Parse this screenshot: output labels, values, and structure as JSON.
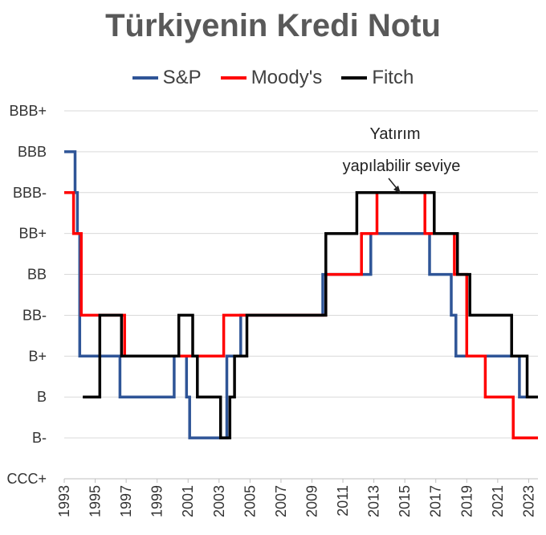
{
  "chart_data": {
    "type": "line",
    "title": "Türkiyenin Kredi Notu",
    "xlabel": "",
    "ylabel": "",
    "xlim": [
      1993,
      2023.6
    ],
    "x_ticks": [
      "1993",
      "1995",
      "1997",
      "1999",
      "2001",
      "2003",
      "2005",
      "2007",
      "2009",
      "2011",
      "2013",
      "2015",
      "2017",
      "2019",
      "2021",
      "2023"
    ],
    "y_categories": [
      "B-",
      "B",
      "B+",
      "BB-",
      "BB",
      "BB+",
      "BBB-",
      "BBB",
      "BBB+"
    ],
    "y_axis_labels": [
      "CCC+",
      "B-",
      "B",
      "B+",
      "BB-",
      "BB",
      "BB+",
      "BBB-",
      "BBB",
      "BBB+"
    ],
    "y_levels_note": "CCC+=0, B-=1, B=2, B+=3, BB-=4, BB=5, BB+=6, BBB-=7, BBB=8, BBB+=9",
    "grid": true,
    "legend_position": "top",
    "annotation": [
      "Yatırım",
      "yapılabilir seviye"
    ],
    "series": [
      {
        "name": "S&P",
        "color": "#2F5597",
        "points": [
          [
            1993,
            8
          ],
          [
            1993.7,
            8
          ],
          [
            1993.7,
            7
          ],
          [
            1993.85,
            7
          ],
          [
            1993.85,
            6
          ],
          [
            1994.0,
            6
          ],
          [
            1994.0,
            3
          ],
          [
            1996.6,
            3
          ],
          [
            1996.6,
            2
          ],
          [
            2000.1,
            2
          ],
          [
            2000.1,
            3
          ],
          [
            2000.9,
            3
          ],
          [
            2000.9,
            2
          ],
          [
            2001.1,
            2
          ],
          [
            2001.1,
            1
          ],
          [
            2003.5,
            1
          ],
          [
            2003.5,
            3
          ],
          [
            2004.4,
            3
          ],
          [
            2004.4,
            4
          ],
          [
            2009.7,
            4
          ],
          [
            2009.7,
            5
          ],
          [
            2012.8,
            5
          ],
          [
            2012.8,
            6
          ],
          [
            2016.6,
            6
          ],
          [
            2016.6,
            5
          ],
          [
            2018.0,
            5
          ],
          [
            2018.0,
            4
          ],
          [
            2018.3,
            4
          ],
          [
            2018.3,
            3
          ],
          [
            2022.4,
            3
          ],
          [
            2022.4,
            2
          ],
          [
            2023.6,
            2
          ]
        ]
      },
      {
        "name": "Moody's",
        "color": "#FF0000",
        "points": [
          [
            1993,
            7
          ],
          [
            1993.6,
            7
          ],
          [
            1993.6,
            6
          ],
          [
            1994.1,
            6
          ],
          [
            1994.1,
            4
          ],
          [
            1996.9,
            4
          ],
          [
            1996.9,
            3
          ],
          [
            2003.3,
            3
          ],
          [
            2003.3,
            4
          ],
          [
            2006.0,
            4
          ],
          [
            2006.0,
            4
          ],
          [
            2009.9,
            4
          ],
          [
            2009.9,
            5
          ],
          [
            2012.2,
            5
          ],
          [
            2012.2,
            6
          ],
          [
            2013.2,
            6
          ],
          [
            2013.2,
            7
          ],
          [
            2016.3,
            7
          ],
          [
            2016.3,
            6
          ],
          [
            2018.2,
            6
          ],
          [
            2018.2,
            5
          ],
          [
            2019.0,
            5
          ],
          [
            2019.0,
            3
          ],
          [
            2020.2,
            3
          ],
          [
            2020.2,
            2
          ],
          [
            2022.0,
            2
          ],
          [
            2022.0,
            1
          ],
          [
            2023.6,
            1
          ]
        ]
      },
      {
        "name": "Fitch",
        "color": "#000000",
        "points": [
          [
            1994.2,
            2
          ],
          [
            1995.3,
            2
          ],
          [
            1995.3,
            4
          ],
          [
            1996.7,
            4
          ],
          [
            1996.7,
            3
          ],
          [
            2000.4,
            3
          ],
          [
            2000.4,
            4
          ],
          [
            2001.3,
            4
          ],
          [
            2001.3,
            3
          ],
          [
            2001.6,
            3
          ],
          [
            2001.6,
            2
          ],
          [
            2003.1,
            2
          ],
          [
            2003.1,
            1
          ],
          [
            2003.7,
            1
          ],
          [
            2003.7,
            2
          ],
          [
            2004.0,
            2
          ],
          [
            2004.0,
            3
          ],
          [
            2004.8,
            3
          ],
          [
            2004.8,
            4
          ],
          [
            2009.9,
            4
          ],
          [
            2009.9,
            6
          ],
          [
            2011.9,
            6
          ],
          [
            2011.9,
            7
          ],
          [
            2016.9,
            7
          ],
          [
            2016.9,
            6
          ],
          [
            2018.4,
            6
          ],
          [
            2018.4,
            5
          ],
          [
            2019.2,
            5
          ],
          [
            2019.2,
            4
          ],
          [
            2021.9,
            4
          ],
          [
            2021.9,
            3
          ],
          [
            2022.9,
            3
          ],
          [
            2022.9,
            2
          ],
          [
            2023.6,
            2
          ]
        ]
      }
    ]
  }
}
